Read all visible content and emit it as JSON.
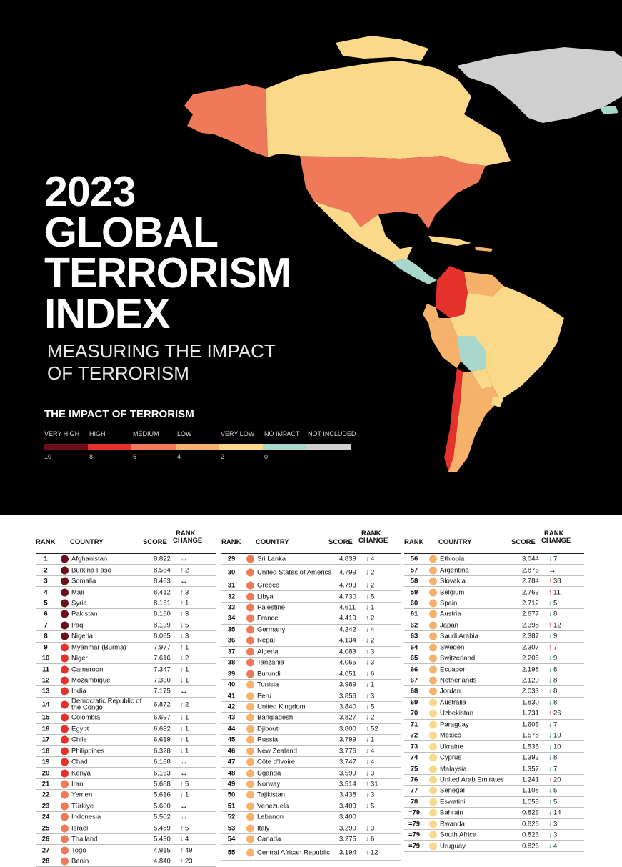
{
  "title_lines": [
    "2023",
    "GLOBAL",
    "TERRORISM",
    "INDEX"
  ],
  "subtitle_lines": [
    "MEASURING THE IMPACT",
    "OF TERRORISM"
  ],
  "legend": {
    "title": "THE IMPACT OF TERRORISM",
    "labels": [
      "VERY HIGH",
      "HIGH",
      "MEDIUM",
      "LOW",
      "VERY LOW",
      "NO IMPACT",
      "NOT INCLUDED"
    ],
    "ticks": [
      "10",
      "8",
      "6",
      "4",
      "2",
      "0"
    ],
    "colors": [
      "#6b0f1a",
      "#e4312b",
      "#ef7a5a",
      "#f6b26b",
      "#fbd98b",
      "#a8d8cc",
      "#cfcfcf"
    ]
  },
  "table_headers": {
    "rank": "RANK",
    "country": "COUNTRY",
    "score": "SCORE",
    "rank_change": [
      "RANK",
      "CHANGE"
    ]
  },
  "columns": [
    [
      {
        "rank": "1",
        "country": "Afghanistan",
        "score": "8.822",
        "dir": "same",
        "change": "",
        "c": "#6b0f1a"
      },
      {
        "rank": "2",
        "country": "Burkina Faso",
        "score": "8.564",
        "dir": "up",
        "change": "2",
        "c": "#6b0f1a"
      },
      {
        "rank": "3",
        "country": "Somalia",
        "score": "8.463",
        "dir": "same",
        "change": "",
        "c": "#6b0f1a"
      },
      {
        "rank": "4",
        "country": "Mali",
        "score": "8.412",
        "dir": "up",
        "change": "3",
        "c": "#6b0f1a"
      },
      {
        "rank": "5",
        "country": "Syria",
        "score": "8.161",
        "dir": "up",
        "change": "1",
        "c": "#6b0f1a"
      },
      {
        "rank": "6",
        "country": "Pakistan",
        "score": "8.160",
        "dir": "up",
        "change": "3",
        "c": "#6b0f1a"
      },
      {
        "rank": "7",
        "country": "Iraq",
        "score": "8.139",
        "dir": "down",
        "change": "5",
        "c": "#6b0f1a"
      },
      {
        "rank": "8",
        "country": "Nigeria",
        "score": "8.065",
        "dir": "down",
        "change": "3",
        "c": "#6b0f1a"
      },
      {
        "rank": "9",
        "country": "Myanmar (Burma)",
        "score": "7.977",
        "dir": "up",
        "change": "1",
        "c": "#e4312b"
      },
      {
        "rank": "10",
        "country": "Niger",
        "score": "7.616",
        "dir": "down",
        "change": "2",
        "c": "#e4312b"
      },
      {
        "rank": "11",
        "country": "Cameroon",
        "score": "7.347",
        "dir": "up",
        "change": "1",
        "c": "#e4312b"
      },
      {
        "rank": "12",
        "country": "Mozambique",
        "score": "7.330",
        "dir": "down",
        "change": "1",
        "c": "#e4312b"
      },
      {
        "rank": "13",
        "country": "India",
        "score": "7.175",
        "dir": "same",
        "change": "",
        "c": "#e4312b"
      },
      {
        "rank": "14",
        "country": "Democratic Republic of the Congo",
        "score": "6.872",
        "dir": "up",
        "change": "2",
        "c": "#e4312b",
        "tall": true
      },
      {
        "rank": "15",
        "country": "Colombia",
        "score": "6.697",
        "dir": "down",
        "change": "1",
        "c": "#e4312b"
      },
      {
        "rank": "16",
        "country": "Egypt",
        "score": "6.632",
        "dir": "down",
        "change": "1",
        "c": "#e4312b"
      },
      {
        "rank": "17",
        "country": "Chile",
        "score": "6.619",
        "dir": "up",
        "change": "1",
        "c": "#e4312b"
      },
      {
        "rank": "18",
        "country": "Philippines",
        "score": "6.328",
        "dir": "down",
        "change": "1",
        "c": "#e4312b"
      },
      {
        "rank": "19",
        "country": "Chad",
        "score": "6.168",
        "dir": "same",
        "change": "",
        "c": "#e4312b"
      },
      {
        "rank": "20",
        "country": "Kenya",
        "score": "6.163",
        "dir": "same",
        "change": "",
        "c": "#e4312b"
      },
      {
        "rank": "21",
        "country": "Iran",
        "score": "5.688",
        "dir": "up",
        "change": "5",
        "c": "#ef7a5a"
      },
      {
        "rank": "22",
        "country": "Yemen",
        "score": "5.616",
        "dir": "down",
        "change": "1",
        "c": "#ef7a5a"
      },
      {
        "rank": "23",
        "country": "Türkiye",
        "score": "5.600",
        "dir": "same",
        "change": "",
        "c": "#ef7a5a"
      },
      {
        "rank": "24",
        "country": "Indonesia",
        "score": "5.502",
        "dir": "same",
        "change": "",
        "c": "#ef7a5a"
      },
      {
        "rank": "25",
        "country": "Israel",
        "score": "5.489",
        "dir": "up",
        "change": "5",
        "c": "#ef7a5a"
      },
      {
        "rank": "26",
        "country": "Thailand",
        "score": "5.430",
        "dir": "down",
        "change": "4",
        "c": "#ef7a5a"
      },
      {
        "rank": "27",
        "country": "Togo",
        "score": "4.915",
        "dir": "up",
        "change": "49",
        "c": "#ef7a5a"
      },
      {
        "rank": "28",
        "country": "Benin",
        "score": "4.840",
        "dir": "up",
        "change": "23",
        "c": "#ef7a5a"
      }
    ],
    [
      {
        "rank": "29",
        "country": "Sri Lanka",
        "score": "4.839",
        "dir": "down",
        "change": "4",
        "c": "#ef7a5a"
      },
      {
        "rank": "30",
        "country": "United States of America",
        "score": "4.799",
        "dir": "down",
        "change": "2",
        "c": "#ef7a5a",
        "tall": true
      },
      {
        "rank": "31",
        "country": "Greece",
        "score": "4.793",
        "dir": "down",
        "change": "2",
        "c": "#ef7a5a"
      },
      {
        "rank": "32",
        "country": "Libya",
        "score": "4.730",
        "dir": "down",
        "change": "5",
        "c": "#ef7a5a"
      },
      {
        "rank": "33",
        "country": "Palestine",
        "score": "4.611",
        "dir": "down",
        "change": "1",
        "c": "#ef7a5a"
      },
      {
        "rank": "34",
        "country": "France",
        "score": "4.419",
        "dir": "up",
        "change": "2",
        "c": "#ef7a5a"
      },
      {
        "rank": "35",
        "country": "Germany",
        "score": "4.242",
        "dir": "down",
        "change": "4",
        "c": "#ef7a5a"
      },
      {
        "rank": "36",
        "country": "Nepal",
        "score": "4.134",
        "dir": "down",
        "change": "2",
        "c": "#ef7a5a"
      },
      {
        "rank": "37",
        "country": "Algeria",
        "score": "4.083",
        "dir": "up",
        "change": "3",
        "c": "#ef7a5a"
      },
      {
        "rank": "38",
        "country": "Tanzania",
        "score": "4.065",
        "dir": "down",
        "change": "3",
        "c": "#ef7a5a"
      },
      {
        "rank": "39",
        "country": "Burundi",
        "score": "4.051",
        "dir": "down",
        "change": "6",
        "c": "#ef7a5a"
      },
      {
        "rank": "40",
        "country": "Tunisia",
        "score": "3.989",
        "dir": "down",
        "change": "1",
        "c": "#f6b26b"
      },
      {
        "rank": "41",
        "country": "Peru",
        "score": "3.856",
        "dir": "down",
        "change": "3",
        "c": "#f6b26b"
      },
      {
        "rank": "42",
        "country": "United Kingdom",
        "score": "3.840",
        "dir": "down",
        "change": "5",
        "c": "#f6b26b"
      },
      {
        "rank": "43",
        "country": "Bangladesh",
        "score": "3.827",
        "dir": "down",
        "change": "2",
        "c": "#f6b26b"
      },
      {
        "rank": "44",
        "country": "Djibouti",
        "score": "3.800",
        "dir": "up",
        "change": "52",
        "c": "#f6b26b"
      },
      {
        "rank": "45",
        "country": "Russia",
        "score": "3.799",
        "dir": "down",
        "change": "1",
        "c": "#f6b26b"
      },
      {
        "rank": "46",
        "country": "New Zealand",
        "score": "3.776",
        "dir": "down",
        "change": "4",
        "c": "#f6b26b"
      },
      {
        "rank": "47",
        "country": "Côte d'Ivoire",
        "score": "3.747",
        "dir": "down",
        "change": "4",
        "c": "#f6b26b"
      },
      {
        "rank": "48",
        "country": "Uganda",
        "score": "3.599",
        "dir": "down",
        "change": "3",
        "c": "#f6b26b"
      },
      {
        "rank": "49",
        "country": "Norway",
        "score": "3.514",
        "dir": "up",
        "change": "31",
        "c": "#f6b26b"
      },
      {
        "rank": "50",
        "country": "Tajikistan",
        "score": "3.438",
        "dir": "down",
        "change": "3",
        "c": "#f6b26b"
      },
      {
        "rank": "51",
        "country": "Venezuela",
        "score": "3.409",
        "dir": "down",
        "change": "5",
        "c": "#f6b26b"
      },
      {
        "rank": "52",
        "country": "Lebanon",
        "score": "3.400",
        "dir": "same",
        "change": "",
        "c": "#f6b26b"
      },
      {
        "rank": "53",
        "country": "Italy",
        "score": "3.290",
        "dir": "down",
        "change": "3",
        "c": "#f6b26b"
      },
      {
        "rank": "54",
        "country": "Canada",
        "score": "3.275",
        "dir": "down",
        "change": "6",
        "c": "#f6b26b"
      },
      {
        "rank": "55",
        "country": "Central African Republic",
        "score": "3.194",
        "dir": "up",
        "change": "12",
        "c": "#f6b26b",
        "tall": true
      }
    ],
    [
      {
        "rank": "56",
        "country": "Ethiopia",
        "score": "3.044",
        "dir": "down",
        "change": "7",
        "c": "#f6b26b"
      },
      {
        "rank": "57",
        "country": "Argentina",
        "score": "2.875",
        "dir": "same",
        "change": "",
        "c": "#f6b26b"
      },
      {
        "rank": "58",
        "country": "Slovakia",
        "score": "2.784",
        "dir": "up",
        "change": "38",
        "c": "#f6b26b"
      },
      {
        "rank": "59",
        "country": "Belgium",
        "score": "2.763",
        "dir": "up",
        "change": "11",
        "c": "#f6b26b"
      },
      {
        "rank": "60",
        "country": "Spain",
        "score": "2.712",
        "dir": "down",
        "change": "5",
        "c": "#f6b26b"
      },
      {
        "rank": "61",
        "country": "Austria",
        "score": "2.677",
        "dir": "down",
        "change": "8",
        "c": "#f6b26b"
      },
      {
        "rank": "62",
        "country": "Japan",
        "score": "2.398",
        "dir": "up",
        "change": "12",
        "c": "#f6b26b"
      },
      {
        "rank": "63",
        "country": "Saudi Arabia",
        "score": "2.387",
        "dir": "down",
        "change": "9",
        "c": "#f6b26b"
      },
      {
        "rank": "64",
        "country": "Sweden",
        "score": "2.307",
        "dir": "up",
        "change": "7",
        "c": "#f6b26b"
      },
      {
        "rank": "65",
        "country": "Switzerland",
        "score": "2.205",
        "dir": "down",
        "change": "9",
        "c": "#f6b26b"
      },
      {
        "rank": "66",
        "country": "Ecuador",
        "score": "2.198",
        "dir": "down",
        "change": "8",
        "c": "#f6b26b"
      },
      {
        "rank": "67",
        "country": "Netherlands",
        "score": "2.120",
        "dir": "down",
        "change": "8",
        "c": "#f6b26b"
      },
      {
        "rank": "68",
        "country": "Jordan",
        "score": "2.033",
        "dir": "down",
        "change": "8",
        "c": "#f6b26b"
      },
      {
        "rank": "69",
        "country": "Australia",
        "score": "1.830",
        "dir": "down",
        "change": "8",
        "c": "#fbd98b"
      },
      {
        "rank": "70",
        "country": "Uzbekistan",
        "score": "1.731",
        "dir": "up",
        "change": "26",
        "c": "#fbd98b"
      },
      {
        "rank": "71",
        "country": "Paraguay",
        "score": "1.605",
        "dir": "down",
        "change": "7",
        "c": "#fbd98b"
      },
      {
        "rank": "72",
        "country": "Mexico",
        "score": "1.578",
        "dir": "down",
        "change": "10",
        "c": "#fbd98b"
      },
      {
        "rank": "73",
        "country": "Ukraine",
        "score": "1.535",
        "dir": "down",
        "change": "10",
        "c": "#fbd98b"
      },
      {
        "rank": "74",
        "country": "Cyprus",
        "score": "1.392",
        "dir": "down",
        "change": "8",
        "c": "#fbd98b"
      },
      {
        "rank": "75",
        "country": "Malaysia",
        "score": "1.357",
        "dir": "down",
        "change": "7",
        "c": "#fbd98b"
      },
      {
        "rank": "76",
        "country": "United Arab Emirates",
        "score": "1.241",
        "dir": "up",
        "change": "20",
        "c": "#fbd98b"
      },
      {
        "rank": "77",
        "country": "Senegal",
        "score": "1.108",
        "dir": "down",
        "change": "5",
        "c": "#fbd98b"
      },
      {
        "rank": "78",
        "country": "Eswatini",
        "score": "1.058",
        "dir": "down",
        "change": "5",
        "c": "#fbd98b"
      },
      {
        "rank": "=79",
        "country": "Bahrain",
        "score": "0.826",
        "dir": "down",
        "change": "14",
        "c": "#fbd98b"
      },
      {
        "rank": "=79",
        "country": "Rwanda",
        "score": "0.826",
        "dir": "down",
        "change": "3",
        "c": "#fbd98b"
      },
      {
        "rank": "=79",
        "country": "South Africa",
        "score": "0.826",
        "dir": "down",
        "change": "3",
        "c": "#fbd98b"
      },
      {
        "rank": "=79",
        "country": "Uruguay",
        "score": "0.826",
        "dir": "down",
        "change": "4",
        "c": "#fbd98b"
      }
    ]
  ]
}
